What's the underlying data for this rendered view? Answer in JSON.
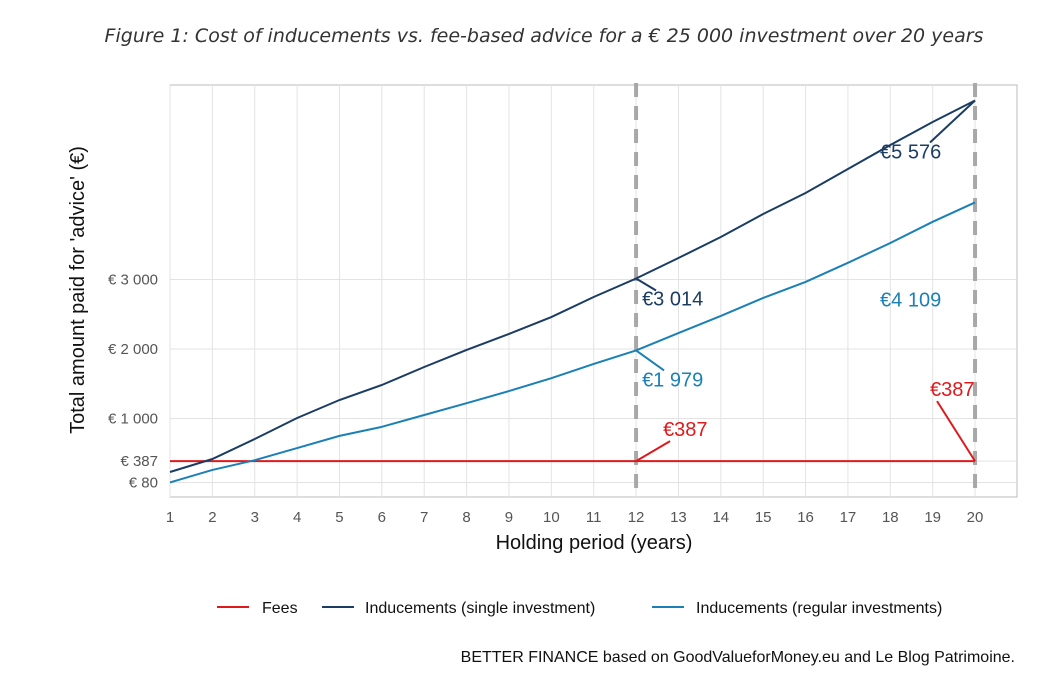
{
  "chart_data": {
    "type": "line",
    "title": "Figure 1: Cost of inducements vs. fee-based advice for a € 25 000 investment over 20 years",
    "xlabel": "Holding period (years)",
    "ylabel": "Total amount paid for 'advice' (€)",
    "x": [
      1,
      2,
      3,
      4,
      5,
      6,
      7,
      8,
      9,
      10,
      11,
      12,
      13,
      14,
      15,
      16,
      17,
      18,
      19,
      20
    ],
    "xlim": [
      1,
      20
    ],
    "ylim": [
      0,
      5800
    ],
    "y_ticks": [
      80,
      387,
      1000,
      2000,
      3000
    ],
    "y_tick_labels": [
      "€ 80",
      "€ 387",
      "€ 1 000",
      "€ 2 000",
      "€ 3 000"
    ],
    "x_tick_labels": [
      "1",
      "2",
      "3",
      "4",
      "5",
      "6",
      "7",
      "8",
      "9",
      "10",
      "11",
      "12",
      "13",
      "14",
      "15",
      "16",
      "17",
      "18",
      "19",
      "20"
    ],
    "grid": true,
    "reference_lines_x": [
      12,
      20
    ],
    "series": [
      {
        "name": "Fees",
        "color": "#e0191b",
        "values": [
          387,
          387,
          387,
          387,
          387,
          387,
          387,
          387,
          387,
          387,
          387,
          387,
          387,
          387,
          387,
          387,
          387,
          387,
          387,
          387
        ]
      },
      {
        "name": "Inducements (single investment)",
        "color": "#1b3c63",
        "values": [
          230,
          417,
          705,
          1007,
          1266,
          1482,
          1741,
          1986,
          2216,
          2460,
          2748,
          3014,
          3309,
          3612,
          3942,
          4245,
          4590,
          4935,
          5266,
          5576
        ]
      },
      {
        "name": "Inducements (regular investments)",
        "color": "#1a80b6",
        "values": [
          80,
          260,
          400,
          575,
          750,
          880,
          1050,
          1220,
          1395,
          1580,
          1785,
          1979,
          2230,
          2475,
          2735,
          2965,
          3240,
          3525,
          3830,
          4109
        ]
      }
    ],
    "annotations": [
      {
        "text": "€5 576",
        "x": 20,
        "y": 5576,
        "series": 1
      },
      {
        "text": "€4 109",
        "x": 20,
        "y": 4109,
        "series": 2
      },
      {
        "text": "€3 014",
        "x": 12,
        "y": 3014,
        "series": 1
      },
      {
        "text": "€1 979",
        "x": 12,
        "y": 1979,
        "series": 2
      },
      {
        "text": "€387",
        "x": 12,
        "y": 387,
        "series": 0
      },
      {
        "text": "€387",
        "x": 20,
        "y": 387,
        "series": 0
      }
    ],
    "legend_position": "bottom",
    "caption": "BETTER FINANCE based on GoodValueforMoney.eu and Le Blog Patrimoine."
  }
}
